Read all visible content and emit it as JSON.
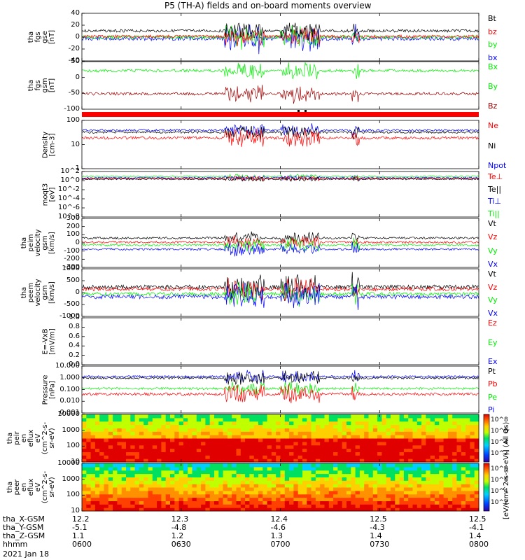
{
  "title": "P5 (TH-A) fields and on-board moments overview",
  "date_label": "2021 Jan 18",
  "colors": {
    "black": "#000000",
    "red": "#ff0000",
    "green": "#00ee00",
    "blue": "#0000ff",
    "darkred": "#a00000"
  },
  "ephemeris": {
    "row_labels": [
      "tha_X-GSM",
      "tha_Y-GSM",
      "tha_Z-GSM",
      "hhmm"
    ],
    "columns": [
      [
        "12.2",
        "-5.1",
        "1.1",
        "0600"
      ],
      [
        "12.3",
        "-4.8",
        "1.2",
        "0630"
      ],
      [
        "12.4",
        "-4.6",
        "1.3",
        "0700"
      ],
      [
        "12.5",
        "-4.3",
        "1.4",
        "0730"
      ],
      [
        "12.5",
        "-4.1",
        "1.4",
        "0800"
      ]
    ]
  },
  "colorbar": {
    "label": "[eV/(cm^2-s-sr-eV)] (All Qs)",
    "label_top": "eV/(cm^2-s-sr-eV)",
    "ticks_top": [
      "10^8",
      "10^6",
      "10^4",
      "10^2"
    ],
    "ticks_bottom": [
      "10^8",
      "10^6",
      "10^4",
      "10^2"
    ]
  },
  "chart_data": [
    {
      "panel": "fgs_gse",
      "type": "line",
      "ylabel": [
        "tha",
        "fgs",
        "gse",
        "[nT]"
      ],
      "ylim": [
        -40,
        40
      ],
      "yticks": [
        "40",
        "20",
        "0",
        "-20",
        "-40"
      ],
      "legend": [
        "Bt",
        "bz",
        "by",
        "bx"
      ]
    },
    {
      "panel": "fgs_gsm",
      "type": "line",
      "ylabel": [
        "tha",
        "fgs",
        "gsm",
        "[nT]"
      ],
      "ylim": [
        -120,
        50
      ],
      "yticks": [
        "50",
        "0",
        "-50",
        "-100"
      ],
      "legend": [
        "Bx",
        "By",
        "Bz"
      ]
    },
    {
      "panel": "density",
      "type": "line",
      "ylabel": [
        "Density",
        "[cm-3]"
      ],
      "yscale": "log",
      "yticks": [
        "100",
        "10",
        "1"
      ],
      "legend": [
        "Ne",
        "Ni",
        "Npot"
      ]
    },
    {
      "panel": "temperature",
      "type": "line",
      "ylabel": [
        "moqt3",
        "[eV]"
      ],
      "yscale": "log",
      "yticks": [
        "10^2",
        "10^0",
        "10^-2",
        "10^-4",
        "10^-6",
        "10^-8"
      ],
      "legend": [
        "Te⊥",
        "Te||",
        "Ti⊥",
        "Ti||"
      ]
    },
    {
      "panel": "peim_velocity",
      "type": "line",
      "ylabel": [
        "tha",
        "peim",
        "velocity",
        "gsm",
        "[km/s]"
      ],
      "ylim": [
        -300,
        300
      ],
      "yticks": [
        "300",
        "200",
        "100",
        "0",
        "-100",
        "-200",
        "-300"
      ],
      "legend": [
        "Vt",
        "Vz",
        "Vy",
        "Vx"
      ]
    },
    {
      "panel": "peem_velocity",
      "type": "line",
      "ylabel": [
        "tha",
        "peem",
        "velocity",
        "gsm",
        "[km/s]"
      ],
      "ylim": [
        -1000,
        1000
      ],
      "yticks": [
        "1000",
        "500",
        "0",
        "-500",
        "-1000"
      ],
      "legend": [
        "Vt",
        "Vz",
        "Vy",
        "Vx"
      ]
    },
    {
      "panel": "efield",
      "type": "line",
      "ylabel": [
        "E=-VxB",
        "[mV/m]"
      ],
      "ylim": [
        0,
        1
      ],
      "yticks": [
        "1.0",
        "0.8",
        "0.6",
        "0.4",
        "0.2",
        "0.0"
      ],
      "legend": [
        "Ez",
        "Ey",
        "Ex"
      ]
    },
    {
      "panel": "pressure",
      "type": "line",
      "ylabel": [
        "Pressure",
        "[nPa]"
      ],
      "yscale": "log",
      "yticks": [
        "10.000",
        "1.000",
        "0.100",
        "0.010",
        "0.001"
      ],
      "legend": [
        "Pt",
        "Pb",
        "Pe",
        "Pi"
      ]
    },
    {
      "panel": "peir_en_eflux",
      "type": "heatmap",
      "ylabel": [
        "tha",
        "peir",
        "en",
        "eflux",
        "eV",
        "(cm^2-s-",
        "sr-eV)"
      ],
      "yticks": [
        "10000",
        "1000",
        "100",
        "10"
      ]
    },
    {
      "panel": "peer_en_eflux",
      "type": "heatmap",
      "ylabel": [
        "tha",
        "peer",
        "en",
        "eflux",
        "eV",
        "(cm^2-s-",
        "sr-eV)"
      ],
      "yticks": [
        "10000",
        "1000",
        "100",
        "10"
      ]
    }
  ]
}
